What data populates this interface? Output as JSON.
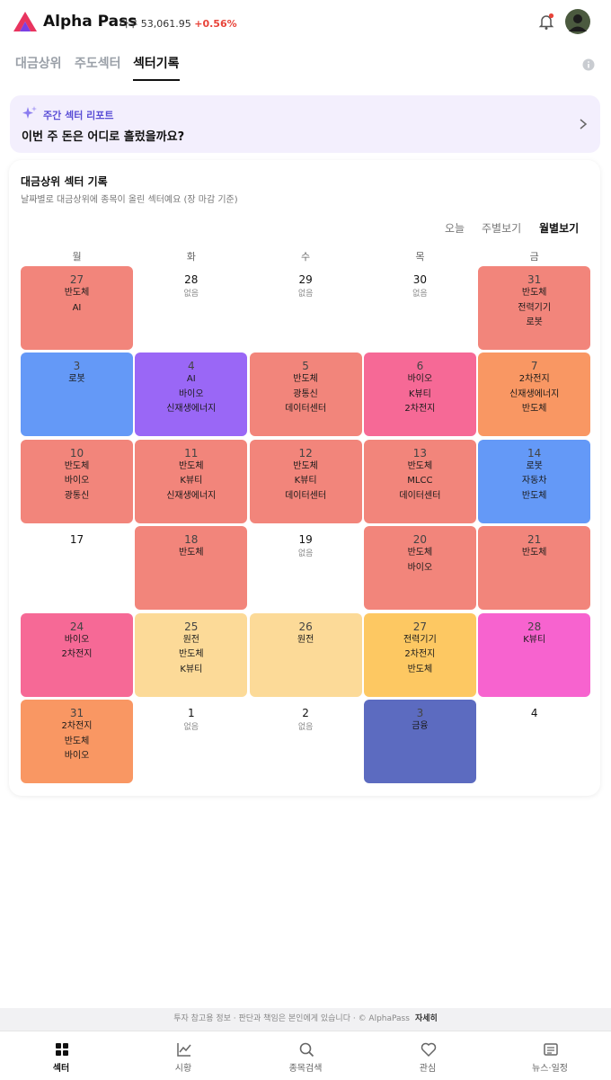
{
  "header": {
    "brand": "Alpha Pass",
    "index_name": "다우",
    "index_value": "53,061.95",
    "index_change": "+0.56%"
  },
  "tabs": {
    "items": [
      "대금상위",
      "주도섹터",
      "섹터기록"
    ],
    "active": 2
  },
  "banner": {
    "label": "주간 섹터 리포트",
    "text": "이번 주 돈은 어디로 흘렀을까요?"
  },
  "card": {
    "title": "대금상위 섹터 기록",
    "subtitle": "날짜별로 대금상위에 종목이 올린 섹터예요 (장 마감 기준)",
    "views": {
      "items": [
        "오늘",
        "주별보기",
        "월별보기"
      ],
      "active": 2
    },
    "weekdays": [
      "월",
      "화",
      "수",
      "목",
      "금"
    ],
    "days": [
      {
        "day": 27,
        "sectors": [
          "반도체",
          "AI"
        ],
        "color": "#f2857b"
      },
      {
        "day": 28,
        "note": "없음"
      },
      {
        "day": 29,
        "note": "없음"
      },
      {
        "day": 30,
        "note": "없음"
      },
      {
        "day": 31,
        "sectors": [
          "반도체",
          "전력기기",
          "로봇"
        ],
        "color": "#f2857b"
      },
      {
        "day": 3,
        "sectors": [
          "로봇"
        ],
        "color": "#6499f7"
      },
      {
        "day": 4,
        "sectors": [
          "AI",
          "바이오",
          "신재생에너지"
        ],
        "color": "#9a67f6"
      },
      {
        "day": 5,
        "sectors": [
          "반도체",
          "광통신",
          "데이터센터"
        ],
        "color": "#f2857b"
      },
      {
        "day": 6,
        "sectors": [
          "바이오",
          "K뷰티",
          "2차전지"
        ],
        "color": "#f66996"
      },
      {
        "day": 7,
        "sectors": [
          "2차전지",
          "신재생에너지",
          "반도체"
        ],
        "color": "#f99763"
      },
      {
        "day": 10,
        "sectors": [
          "반도체",
          "바이오",
          "광통신"
        ],
        "color": "#f2857b"
      },
      {
        "day": 11,
        "sectors": [
          "반도체",
          "K뷰티",
          "신재생에너지"
        ],
        "color": "#f2857b"
      },
      {
        "day": 12,
        "sectors": [
          "반도체",
          "K뷰티",
          "데이터센터"
        ],
        "color": "#f2857b"
      },
      {
        "day": 13,
        "sectors": [
          "반도체",
          "MLCC",
          "데이터센터"
        ],
        "color": "#f2857b"
      },
      {
        "day": 14,
        "sectors": [
          "로봇",
          "자동차",
          "반도체"
        ],
        "color": "#6499f7"
      },
      {
        "day": 17
      },
      {
        "day": 18,
        "sectors": [
          "반도체"
        ],
        "color": "#f2857b"
      },
      {
        "day": 19,
        "note": "없음"
      },
      {
        "day": 20,
        "sectors": [
          "반도체",
          "바이오"
        ],
        "color": "#f2857b"
      },
      {
        "day": 21,
        "sectors": [
          "반도체"
        ],
        "color": "#f2857b"
      },
      {
        "day": 24,
        "sectors": [
          "바이오",
          "2차전지"
        ],
        "color": "#f66996"
      },
      {
        "day": 25,
        "sectors": [
          "원전",
          "반도체",
          "K뷰티"
        ],
        "color": "#fcda98"
      },
      {
        "day": 26,
        "sectors": [
          "원전"
        ],
        "color": "#fcda98"
      },
      {
        "day": 27,
        "sectors": [
          "전력기기",
          "2차전지",
          "반도체"
        ],
        "color": "#fdc862"
      },
      {
        "day": 28,
        "sectors": [
          "K뷰티"
        ],
        "color": "#f763cf"
      },
      {
        "day": 31,
        "sectors": [
          "2차전지",
          "반도체",
          "바이오"
        ],
        "color": "#f99763"
      },
      {
        "day": 1,
        "note": "없음"
      },
      {
        "day": 2,
        "note": "없음"
      },
      {
        "day": 3,
        "sectors": [
          "금융"
        ],
        "color": "#5c6bc0"
      },
      {
        "day": 4
      }
    ]
  },
  "footer": {
    "disclaimer": "투자 참고용 정보 · 판단과 책임은 본인에게 있습니다 · © AlphaPass",
    "link": "자세히"
  },
  "nav": {
    "items": [
      "섹터",
      "시황",
      "종목검색",
      "관심",
      "뉴스·일정"
    ],
    "active": 0
  }
}
